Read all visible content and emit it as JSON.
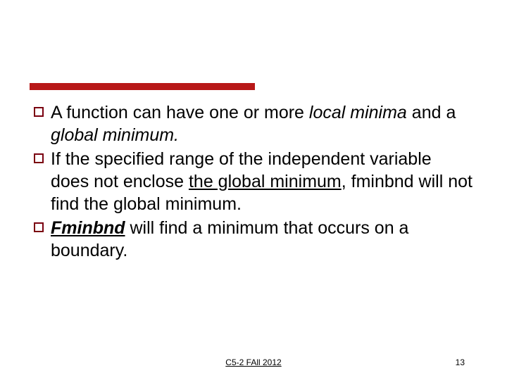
{
  "accent_color": "#b81818",
  "bullet_border_color": "#7a0010",
  "text_color": "#000000",
  "background_color": "#ffffff",
  "body_fontsize": 25,
  "footer_fontsize": 12,
  "bullets": {
    "b1_part1": "A function can have one or more ",
    "b1_italic": "local minima",
    "b1_part2": " and a ",
    "b1_italic2": "global minimum.",
    "b2_part1": "If the specified range of the independent variable does not enclose ",
    "b2_underline": "the global minimum",
    "b2_part2": ", fminbnd will not find the global minimum.",
    "b3_bold": "Fminbnd",
    "b3_part2": " will find a minimum that occurs on a boundary."
  },
  "footer": {
    "center": "C5-2 FAll 2012",
    "page": "13"
  }
}
